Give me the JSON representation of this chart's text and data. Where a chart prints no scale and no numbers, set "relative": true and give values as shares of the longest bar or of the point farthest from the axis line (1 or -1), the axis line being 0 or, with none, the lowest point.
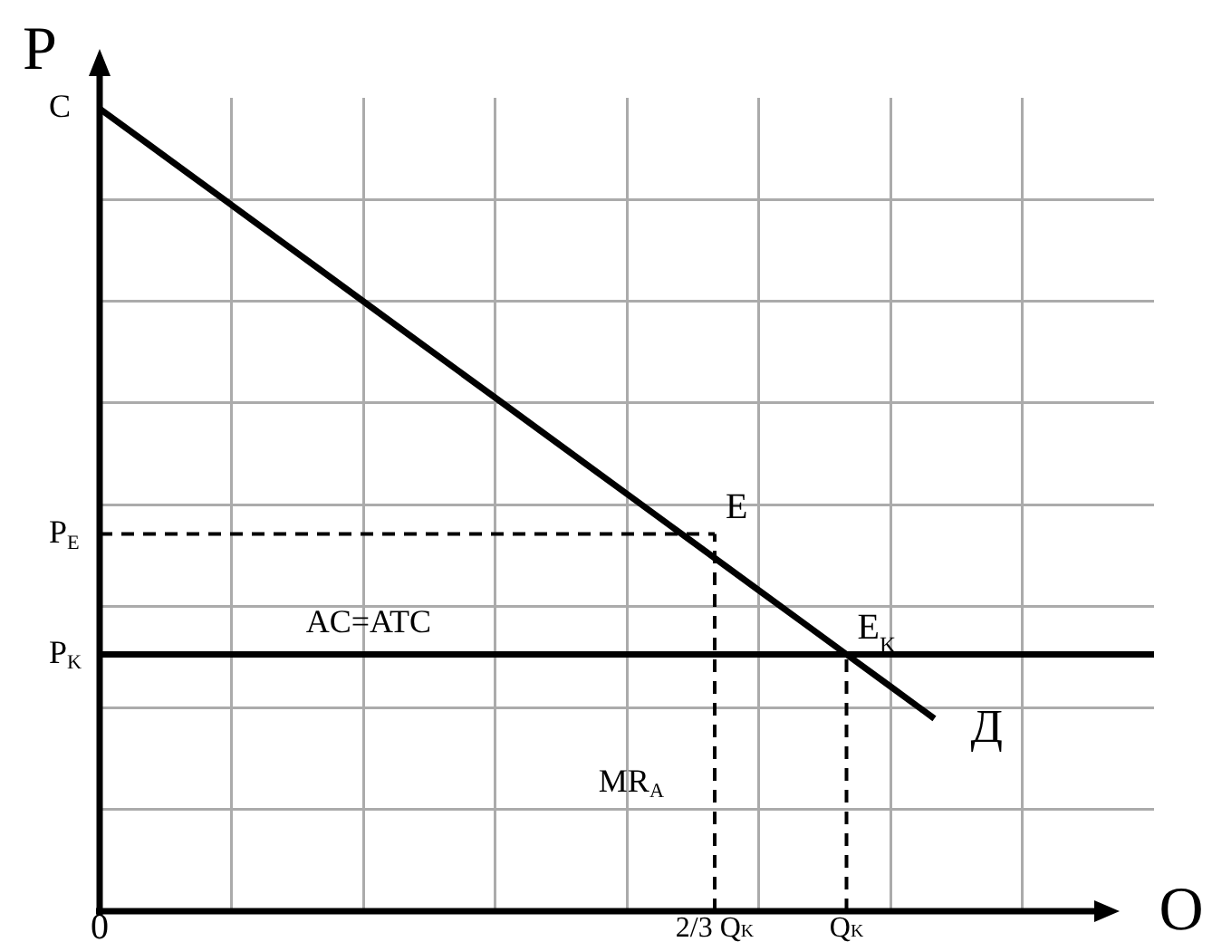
{
  "chart_data": {
    "type": "line",
    "relative": true,
    "xlabel": "O",
    "ylabel": "P",
    "grid": true,
    "marker": "none",
    "categories": [
      "0",
      null,
      null,
      null,
      null,
      null,
      null,
      null,
      null,
      null,
      null,
      null,
      null,
      null,
      "2/3 Q$_{K}$",
      null,
      null,
      "Q$_{K}$",
      null,
      null,
      null,
      null,
      null,
      null,
      null
    ],
    "series": [
      {
        "name": "Д",
        "color": "#000000",
        "values": [
          1,
          0.96,
          0.92,
          0.88,
          0.84,
          0.8,
          0.76,
          0.72,
          0.68,
          0.64,
          0.6,
          0.56,
          0.52,
          0.48,
          0.44,
          0.4,
          0.36,
          0.32,
          0.28,
          0.24,
          null,
          null,
          null,
          null,
          null
        ]
      },
      {
        "color": "#000000",
        "line_style": "dashed",
        "values": [
          0.47,
          0.47,
          0.47,
          0.47,
          0.47,
          0.47,
          0.47,
          0.47,
          0.47,
          0.47,
          0.47,
          0.47,
          0.47,
          0.47,
          0.47,
          null,
          null,
          null,
          null,
          null,
          null,
          null,
          null,
          null,
          null
        ]
      },
      {
        "color": "#000000",
        "line_style": "dashed",
        "x": [
          "2/3 Q$_{K}$",
          "2/3 Q$_{K}$"
        ],
        "values": [
          0,
          0.47
        ]
      },
      {
        "color": "#000000",
        "line_style": "dashed",
        "x": [
          "Q$_{K}$",
          "Q$_{K}$"
        ],
        "values": [
          0,
          0.32
        ]
      }
    ],
    "ref_lines": [
      {
        "axis": "y",
        "value": 0.32,
        "label": "AC=ATC",
        "color": "#000000"
      }
    ],
    "annotations": [
      {
        "text": "C",
        "x": "0",
        "y": 1
      },
      {
        "text": "P$_{E}$",
        "x": "0",
        "y": 0.47
      },
      {
        "text": "P$_{K}$",
        "x": "0",
        "y": 0.32
      },
      {
        "text": "E",
        "x": "2/3 Q$_{K}$",
        "y": 0.47
      },
      {
        "text": "E$_{K}$",
        "x": "Q$_{K}$",
        "y": 0.32
      },
      {
        "text": "MR$_{A}$",
        "x": "2/3 Q$_{K}$",
        "y": 0.16
      }
    ]
  }
}
